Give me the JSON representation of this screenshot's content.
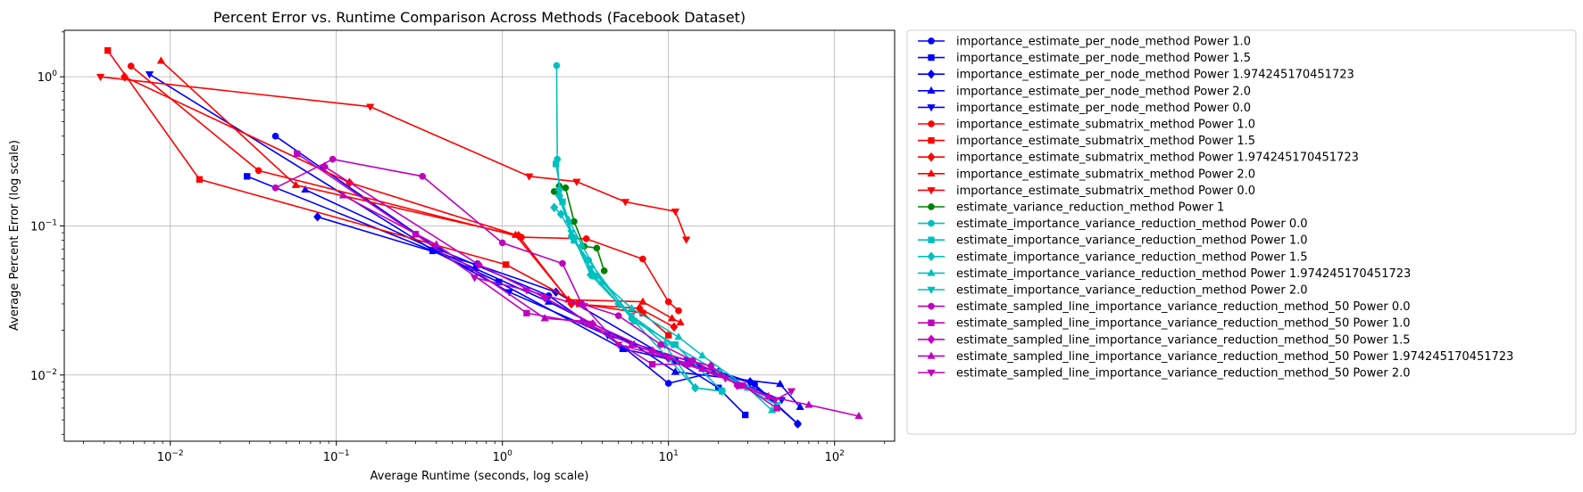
{
  "chart_data": {
    "type": "line",
    "title": "Percent Error vs. Runtime Comparison Across Methods (Facebook Dataset)",
    "xlabel": "Average Runtime (seconds, log scale)",
    "ylabel": "Average Percent Error (log scale)",
    "xscale": "log",
    "yscale": "log",
    "xlim": [
      0.0023,
      230
    ],
    "ylim": [
      0.0036,
      2.05
    ],
    "x_ticks": [
      {
        "value": 0.01,
        "base": "10",
        "exp": "−2"
      },
      {
        "value": 0.1,
        "base": "10",
        "exp": "−1"
      },
      {
        "value": 1,
        "base": "10",
        "exp": "0"
      },
      {
        "value": 10,
        "base": "10",
        "exp": "1"
      },
      {
        "value": 100,
        "base": "10",
        "exp": "2"
      }
    ],
    "y_ticks": [
      {
        "value": 0.01,
        "base": "10",
        "exp": "−2"
      },
      {
        "value": 0.1,
        "base": "10",
        "exp": "−1"
      },
      {
        "value": 1,
        "base": "10",
        "exp": "0"
      }
    ],
    "grid": true,
    "legend_position": "outside-right",
    "series": [
      {
        "name": "importance_estimate_per_node_method Power 1.0",
        "color": "#0000ff",
        "marker": "circle",
        "x": [
          0.043,
          0.42,
          1.9,
          5.5,
          10,
          19,
          33,
          60
        ],
        "y": [
          0.4,
          0.069,
          0.034,
          0.015,
          0.0088,
          0.0105,
          0.0087,
          0.0047
        ]
      },
      {
        "name": "importance_estimate_per_node_method Power 1.5",
        "color": "#0000ff",
        "marker": "square",
        "x": [
          0.029,
          0.38,
          0.95,
          5.3,
          11,
          20,
          29
        ],
        "y": [
          0.215,
          0.068,
          0.042,
          0.015,
          0.0125,
          0.0082,
          0.0054
        ]
      },
      {
        "name": "importance_estimate_per_node_method Power 1.974245170451723",
        "color": "#0000ff",
        "marker": "diamond",
        "x": [
          0.077,
          0.7,
          2.1,
          10,
          20,
          31,
          60
        ],
        "y": [
          0.115,
          0.055,
          0.036,
          0.013,
          0.0105,
          0.009,
          0.0047
        ]
      },
      {
        "name": "importance_estimate_per_node_method Power 2.0",
        "color": "#0000ff",
        "marker": "triangle-up",
        "x": [
          0.065,
          0.68,
          1.9,
          6.2,
          11,
          47,
          62
        ],
        "y": [
          0.175,
          0.052,
          0.031,
          0.016,
          0.0105,
          0.0087,
          0.0061
        ]
      },
      {
        "name": "importance_estimate_per_node_method Power 0.0",
        "color": "#0000ff",
        "marker": "triangle-down",
        "x": [
          0.0075,
          0.38,
          1.1,
          4.3,
          13,
          19,
          48
        ],
        "y": [
          1.04,
          0.069,
          0.036,
          0.0185,
          0.0125,
          0.0105,
          0.0068
        ]
      },
      {
        "name": "importance_estimate_submatrix_method Power 1.0",
        "color": "#ff0000",
        "marker": "circle",
        "x": [
          0.0058,
          0.034,
          1.3,
          3.2,
          7,
          10,
          11.5
        ],
        "y": [
          1.18,
          0.235,
          0.084,
          0.082,
          0.06,
          0.031,
          0.027
        ]
      },
      {
        "name": "importance_estimate_submatrix_method Power 1.5",
        "color": "#ff0000",
        "marker": "square",
        "x": [
          0.0042,
          0.015,
          1.05,
          2.9,
          7,
          10
        ],
        "y": [
          1.5,
          0.205,
          0.055,
          0.03,
          0.026,
          0.0185
        ]
      },
      {
        "name": "importance_estimate_submatrix_method Power 1.974245170451723",
        "color": "#ff0000",
        "marker": "diamond",
        "x": [
          0.0053,
          0.12,
          1.25,
          2.6,
          6.7,
          10.8
        ],
        "y": [
          1.0,
          0.195,
          0.086,
          0.03,
          0.028,
          0.021
        ]
      },
      {
        "name": "importance_estimate_submatrix_method Power 2.0",
        "color": "#ff0000",
        "marker": "triangle-up",
        "x": [
          0.0088,
          0.057,
          1.2,
          2.5,
          7,
          10.5,
          11.8
        ],
        "y": [
          1.28,
          0.188,
          0.087,
          0.032,
          0.031,
          0.024,
          0.0225
        ]
      },
      {
        "name": "importance_estimate_submatrix_method Power 0.0",
        "color": "#ff0000",
        "marker": "triangle-down",
        "x": [
          0.0038,
          0.16,
          1.45,
          2.8,
          5.5,
          11,
          12.8
        ],
        "y": [
          1.0,
          0.63,
          0.215,
          0.198,
          0.145,
          0.125,
          0.081
        ]
      },
      {
        "name": "estimate_variance_reduction_method Power 1",
        "color": "#008000",
        "marker": "circle",
        "x": [
          2.05,
          2.2,
          2.4,
          2.7,
          3.1,
          3.7,
          4.1
        ],
        "y": [
          0.17,
          0.185,
          0.18,
          0.107,
          0.073,
          0.071,
          0.05
        ]
      },
      {
        "name": "estimate_importance_variance_reduction_method Power 0.0",
        "color": "#00bfbf",
        "marker": "circle",
        "x": [
          2.12,
          2.14,
          2.2,
          2.6,
          3.3,
          6.0,
          14.5,
          21
        ],
        "y": [
          1.19,
          0.28,
          0.175,
          0.085,
          0.059,
          0.024,
          0.0082,
          0.0078
        ]
      },
      {
        "name": "estimate_importance_variance_reduction_method Power 1.0",
        "color": "#00bfbf",
        "marker": "square",
        "x": [
          2.1,
          2.3,
          2.7,
          3.6,
          6.2,
          11,
          21
        ],
        "y": [
          0.26,
          0.145,
          0.08,
          0.046,
          0.023,
          0.016,
          0.0078
        ]
      },
      {
        "name": "estimate_importance_variance_reduction_method Power 1.5",
        "color": "#00bfbf",
        "marker": "diamond",
        "x": [
          2.05,
          2.25,
          2.7,
          3.4,
          5.0,
          9.5,
          14.5,
          21
        ],
        "y": [
          0.133,
          0.12,
          0.083,
          0.047,
          0.03,
          0.016,
          0.0082,
          0.0078
        ]
      },
      {
        "name": "estimate_importance_variance_reduction_method Power 1.974245170451723",
        "color": "#00bfbf",
        "marker": "triangle-up",
        "x": [
          2.2,
          2.5,
          3.0,
          4.0,
          6.0,
          11.5,
          16,
          30,
          42
        ],
        "y": [
          0.165,
          0.11,
          0.075,
          0.042,
          0.028,
          0.018,
          0.0135,
          0.0082,
          0.0058
        ]
      },
      {
        "name": "estimate_importance_variance_reduction_method Power 2.0",
        "color": "#00bfbf",
        "marker": "triangle-down",
        "x": [
          2.2,
          2.6,
          3.4,
          6.0,
          10.5,
          20,
          45
        ],
        "y": [
          0.155,
          0.09,
          0.052,
          0.025,
          0.016,
          0.0105,
          0.0063
        ]
      },
      {
        "name": "estimate_sampled_line_importance_variance_reduction_method_50 Power 0.0",
        "color": "#bf00bf",
        "marker": "circle",
        "x": [
          0.043,
          0.095,
          0.33,
          1.0,
          2.3,
          3.0,
          5.0,
          9.0,
          14,
          27
        ],
        "y": [
          0.18,
          0.28,
          0.215,
          0.077,
          0.056,
          0.03,
          0.025,
          0.016,
          0.0125,
          0.0085
        ]
      },
      {
        "name": "estimate_sampled_line_importance_variance_reduction_method_50 Power 1.0",
        "color": "#bf00bf",
        "marker": "square",
        "x": [
          0.058,
          0.3,
          1.4,
          3.3,
          8.0,
          13,
          28,
          45
        ],
        "y": [
          0.305,
          0.088,
          0.026,
          0.022,
          0.0118,
          0.0118,
          0.0085,
          0.006
        ]
      },
      {
        "name": "estimate_sampled_line_importance_variance_reduction_method_50 Power 1.5",
        "color": "#bf00bf",
        "marker": "diamond",
        "x": [
          0.085,
          0.72,
          1.8,
          3.5,
          8.0,
          18,
          26
        ],
        "y": [
          0.25,
          0.055,
          0.033,
          0.022,
          0.0145,
          0.0115,
          0.0085
        ]
      },
      {
        "name": "estimate_sampled_line_importance_variance_reduction_method_50 Power 1.974245170451723",
        "color": "#bf00bf",
        "marker": "triangle-up",
        "x": [
          0.11,
          0.4,
          1.8,
          3.0,
          6.0,
          16,
          40,
          70,
          140
        ],
        "y": [
          0.16,
          0.075,
          0.024,
          0.023,
          0.016,
          0.011,
          0.0072,
          0.0063,
          0.0053
        ]
      },
      {
        "name": "estimate_sampled_line_importance_variance_reduction_method_50 Power 2.0",
        "color": "#bf00bf",
        "marker": "triangle-down",
        "x": [
          0.68,
          1.4,
          3.1,
          5.0,
          10,
          22,
          44,
          55
        ],
        "y": [
          0.045,
          0.037,
          0.029,
          0.016,
          0.013,
          0.0095,
          0.0068,
          0.0078
        ]
      }
    ]
  }
}
